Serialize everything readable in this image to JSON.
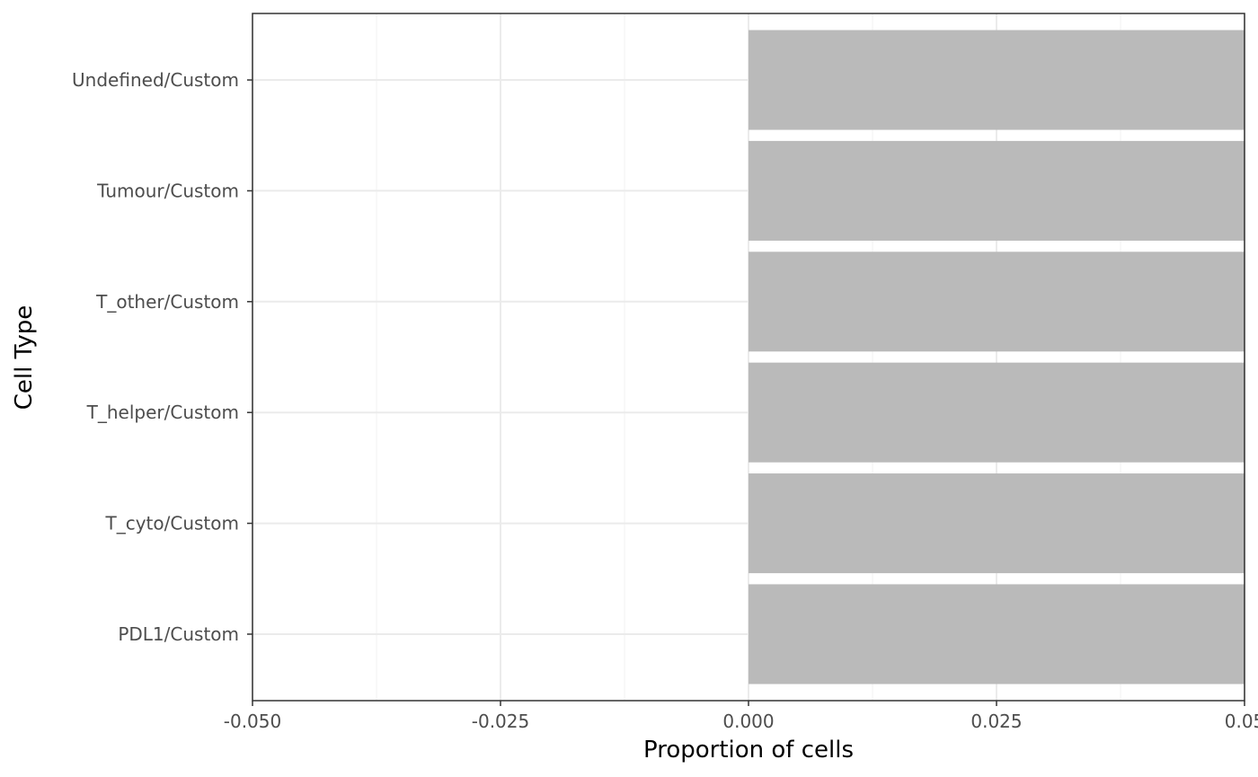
{
  "chart_data": {
    "type": "bar",
    "orientation": "horizontal",
    "title": "",
    "xlabel": "Proportion of cells",
    "ylabel": "Cell Type",
    "categories": [
      "PDL1/Custom",
      "T_cyto/Custom",
      "T_helper/Custom",
      "T_other/Custom",
      "Tumour/Custom",
      "Undefined/Custom"
    ],
    "values": [
      0.05,
      0.05,
      0.05,
      0.05,
      0.05,
      0.05
    ],
    "xlim": [
      -0.05,
      0.05
    ],
    "x_ticks": [
      -0.05,
      -0.025,
      0.0,
      0.025,
      0.05
    ],
    "x_tick_labels": [
      "-0.050",
      "-0.025",
      "0.000",
      "0.025",
      "0.05"
    ],
    "grid": true,
    "legend": "none",
    "colors": {
      "bar": "#bababa",
      "grid_major": "#ebebeb",
      "grid_minor": "#f2f2f2",
      "panel_border": "#333333",
      "tick_text": "#4d4d4d",
      "axis_title": "#000000"
    }
  }
}
